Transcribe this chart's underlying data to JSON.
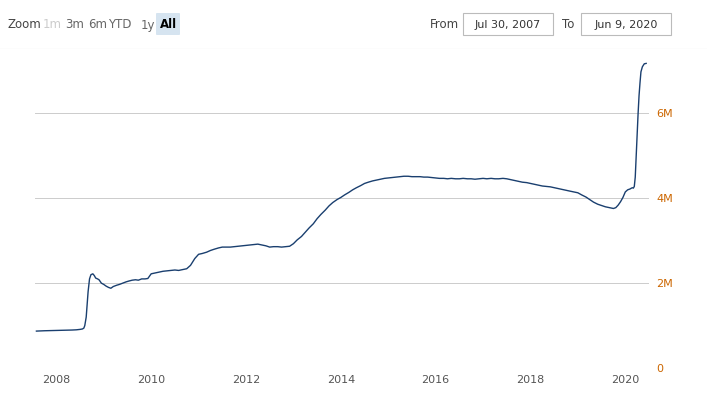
{
  "background_color": "#ffffff",
  "plot_bg_color": "#ffffff",
  "line_color": "#1a3f6f",
  "grid_color": "#cccccc",
  "header_bg": "#f8f8f8",
  "zoom_labels": [
    "1m",
    "3m",
    "6m",
    "YTD",
    "1y",
    "All"
  ],
  "zoom_active": "All",
  "from_date": "Jul 30, 2007",
  "to_date": "Jun 9, 2020",
  "x_ticks": [
    2008,
    2010,
    2012,
    2014,
    2016,
    2018,
    2020
  ],
  "y_ticks": [
    0,
    2,
    4,
    6
  ],
  "y_tick_labels": [
    "0",
    "2M",
    "4M",
    "6M"
  ],
  "ylim": [
    0,
    7.5
  ],
  "xlim_start": 2007.55,
  "xlim_end": 2020.5,
  "data_points": [
    [
      2007.58,
      0.87
    ],
    [
      2007.67,
      0.875
    ],
    [
      2007.75,
      0.878
    ],
    [
      2007.83,
      0.88
    ],
    [
      2007.92,
      0.882
    ],
    [
      2008.0,
      0.885
    ],
    [
      2008.08,
      0.888
    ],
    [
      2008.17,
      0.89
    ],
    [
      2008.25,
      0.892
    ],
    [
      2008.33,
      0.895
    ],
    [
      2008.42,
      0.9
    ],
    [
      2008.5,
      0.91
    ],
    [
      2008.55,
      0.92
    ],
    [
      2008.58,
      0.94
    ],
    [
      2008.6,
      1.0
    ],
    [
      2008.63,
      1.2
    ],
    [
      2008.65,
      1.5
    ],
    [
      2008.67,
      1.8
    ],
    [
      2008.7,
      2.1
    ],
    [
      2008.73,
      2.2
    ],
    [
      2008.77,
      2.22
    ],
    [
      2008.8,
      2.18
    ],
    [
      2008.83,
      2.12
    ],
    [
      2008.87,
      2.1
    ],
    [
      2008.9,
      2.08
    ],
    [
      2008.95,
      2.0
    ],
    [
      2009.0,
      1.97
    ],
    [
      2009.05,
      1.93
    ],
    [
      2009.1,
      1.9
    ],
    [
      2009.15,
      1.88
    ],
    [
      2009.2,
      1.92
    ],
    [
      2009.27,
      1.95
    ],
    [
      2009.33,
      1.97
    ],
    [
      2009.4,
      2.0
    ],
    [
      2009.47,
      2.03
    ],
    [
      2009.53,
      2.05
    ],
    [
      2009.6,
      2.07
    ],
    [
      2009.67,
      2.08
    ],
    [
      2009.73,
      2.07
    ],
    [
      2009.8,
      2.1
    ],
    [
      2009.87,
      2.1
    ],
    [
      2009.93,
      2.11
    ],
    [
      2010.0,
      2.22
    ],
    [
      2010.08,
      2.24
    ],
    [
      2010.17,
      2.26
    ],
    [
      2010.25,
      2.28
    ],
    [
      2010.33,
      2.29
    ],
    [
      2010.42,
      2.3
    ],
    [
      2010.5,
      2.31
    ],
    [
      2010.58,
      2.3
    ],
    [
      2010.67,
      2.32
    ],
    [
      2010.75,
      2.34
    ],
    [
      2010.83,
      2.42
    ],
    [
      2010.92,
      2.58
    ],
    [
      2011.0,
      2.68
    ],
    [
      2011.08,
      2.7
    ],
    [
      2011.17,
      2.73
    ],
    [
      2011.25,
      2.77
    ],
    [
      2011.33,
      2.8
    ],
    [
      2011.42,
      2.83
    ],
    [
      2011.5,
      2.85
    ],
    [
      2011.58,
      2.85
    ],
    [
      2011.67,
      2.85
    ],
    [
      2011.75,
      2.86
    ],
    [
      2011.83,
      2.87
    ],
    [
      2011.92,
      2.88
    ],
    [
      2012.0,
      2.89
    ],
    [
      2012.08,
      2.9
    ],
    [
      2012.17,
      2.91
    ],
    [
      2012.25,
      2.92
    ],
    [
      2012.33,
      2.9
    ],
    [
      2012.42,
      2.88
    ],
    [
      2012.5,
      2.85
    ],
    [
      2012.58,
      2.86
    ],
    [
      2012.67,
      2.86
    ],
    [
      2012.75,
      2.85
    ],
    [
      2012.83,
      2.86
    ],
    [
      2012.92,
      2.87
    ],
    [
      2013.0,
      2.93
    ],
    [
      2013.08,
      3.02
    ],
    [
      2013.17,
      3.1
    ],
    [
      2013.25,
      3.2
    ],
    [
      2013.33,
      3.3
    ],
    [
      2013.42,
      3.4
    ],
    [
      2013.5,
      3.52
    ],
    [
      2013.58,
      3.62
    ],
    [
      2013.67,
      3.72
    ],
    [
      2013.75,
      3.82
    ],
    [
      2013.83,
      3.9
    ],
    [
      2013.92,
      3.97
    ],
    [
      2014.0,
      4.02
    ],
    [
      2014.08,
      4.08
    ],
    [
      2014.17,
      4.14
    ],
    [
      2014.25,
      4.2
    ],
    [
      2014.33,
      4.25
    ],
    [
      2014.42,
      4.3
    ],
    [
      2014.5,
      4.35
    ],
    [
      2014.58,
      4.38
    ],
    [
      2014.67,
      4.41
    ],
    [
      2014.75,
      4.43
    ],
    [
      2014.83,
      4.45
    ],
    [
      2014.92,
      4.47
    ],
    [
      2015.0,
      4.48
    ],
    [
      2015.08,
      4.49
    ],
    [
      2015.17,
      4.5
    ],
    [
      2015.25,
      4.51
    ],
    [
      2015.33,
      4.52
    ],
    [
      2015.42,
      4.52
    ],
    [
      2015.5,
      4.51
    ],
    [
      2015.58,
      4.51
    ],
    [
      2015.67,
      4.51
    ],
    [
      2015.75,
      4.5
    ],
    [
      2015.83,
      4.5
    ],
    [
      2015.92,
      4.49
    ],
    [
      2016.0,
      4.48
    ],
    [
      2016.08,
      4.47
    ],
    [
      2016.17,
      4.47
    ],
    [
      2016.25,
      4.46
    ],
    [
      2016.33,
      4.47
    ],
    [
      2016.42,
      4.46
    ],
    [
      2016.5,
      4.46
    ],
    [
      2016.58,
      4.47
    ],
    [
      2016.67,
      4.46
    ],
    [
      2016.75,
      4.46
    ],
    [
      2016.83,
      4.45
    ],
    [
      2016.92,
      4.46
    ],
    [
      2017.0,
      4.47
    ],
    [
      2017.08,
      4.46
    ],
    [
      2017.17,
      4.47
    ],
    [
      2017.25,
      4.46
    ],
    [
      2017.33,
      4.46
    ],
    [
      2017.42,
      4.47
    ],
    [
      2017.5,
      4.46
    ],
    [
      2017.58,
      4.44
    ],
    [
      2017.67,
      4.42
    ],
    [
      2017.75,
      4.4
    ],
    [
      2017.83,
      4.38
    ],
    [
      2017.92,
      4.37
    ],
    [
      2018.0,
      4.35
    ],
    [
      2018.08,
      4.33
    ],
    [
      2018.17,
      4.31
    ],
    [
      2018.25,
      4.29
    ],
    [
      2018.33,
      4.28
    ],
    [
      2018.42,
      4.27
    ],
    [
      2018.5,
      4.25
    ],
    [
      2018.58,
      4.23
    ],
    [
      2018.67,
      4.21
    ],
    [
      2018.75,
      4.19
    ],
    [
      2018.83,
      4.17
    ],
    [
      2018.92,
      4.15
    ],
    [
      2019.0,
      4.13
    ],
    [
      2019.08,
      4.08
    ],
    [
      2019.17,
      4.03
    ],
    [
      2019.25,
      3.97
    ],
    [
      2019.33,
      3.91
    ],
    [
      2019.42,
      3.86
    ],
    [
      2019.5,
      3.83
    ],
    [
      2019.58,
      3.8
    ],
    [
      2019.67,
      3.78
    ],
    [
      2019.75,
      3.76
    ],
    [
      2019.8,
      3.78
    ],
    [
      2019.85,
      3.84
    ],
    [
      2019.9,
      3.92
    ],
    [
      2019.95,
      4.02
    ],
    [
      2020.0,
      4.15
    ],
    [
      2020.05,
      4.2
    ],
    [
      2020.1,
      4.22
    ],
    [
      2020.13,
      4.24
    ],
    [
      2020.15,
      4.25
    ],
    [
      2020.17,
      4.24
    ],
    [
      2020.19,
      4.28
    ],
    [
      2020.21,
      4.5
    ],
    [
      2020.23,
      5.0
    ],
    [
      2020.25,
      5.55
    ],
    [
      2020.27,
      6.0
    ],
    [
      2020.29,
      6.42
    ],
    [
      2020.31,
      6.72
    ],
    [
      2020.33,
      6.98
    ],
    [
      2020.36,
      7.1
    ],
    [
      2020.4,
      7.17
    ],
    [
      2020.44,
      7.18
    ]
  ]
}
